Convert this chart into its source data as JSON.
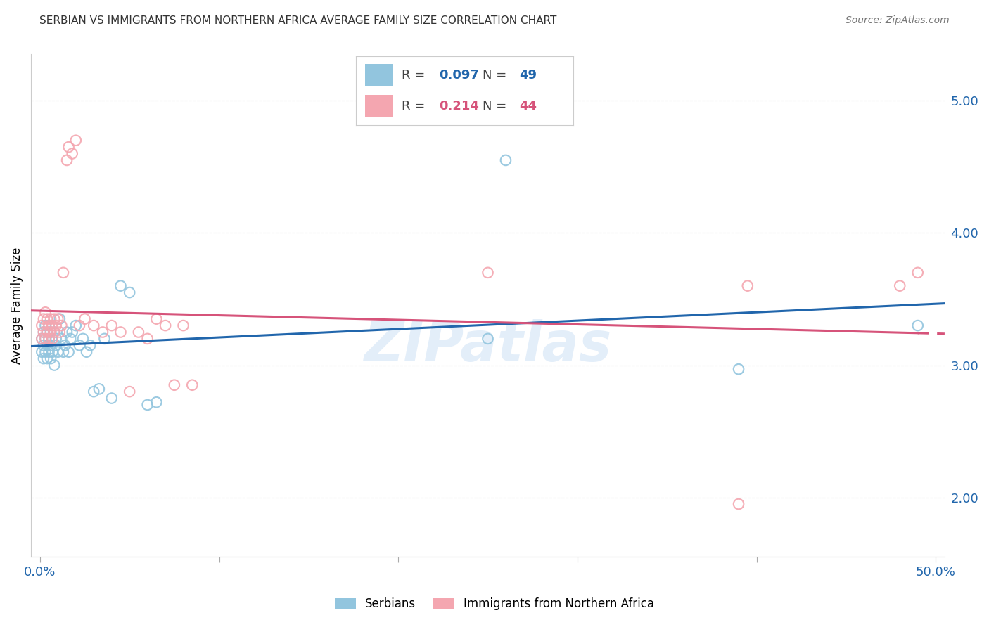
{
  "title": "SERBIAN VS IMMIGRANTS FROM NORTHERN AFRICA AVERAGE FAMILY SIZE CORRELATION CHART",
  "source": "Source: ZipAtlas.com",
  "ylabel": "Average Family Size",
  "ylabel_ticks": [
    2.0,
    3.0,
    4.0,
    5.0
  ],
  "ylim": [
    1.55,
    5.35
  ],
  "xlim": [
    -0.005,
    0.505
  ],
  "x_tick_positions": [
    0.0,
    0.1,
    0.2,
    0.3,
    0.4,
    0.5
  ],
  "x_tick_labels_visible": [
    "0.0%",
    "",
    "",
    "",
    "",
    "50.0%"
  ],
  "legend_blue_R": "0.097",
  "legend_blue_N": "49",
  "legend_pink_R": "0.214",
  "legend_pink_N": "44",
  "blue_color": "#92c5de",
  "pink_color": "#f4a6b0",
  "blue_line_color": "#2166ac",
  "pink_line_color": "#d6537a",
  "watermark": "ZIPatlas",
  "blue_points_x": [
    0.001,
    0.001,
    0.002,
    0.002,
    0.002,
    0.003,
    0.003,
    0.003,
    0.004,
    0.004,
    0.004,
    0.005,
    0.005,
    0.005,
    0.006,
    0.006,
    0.006,
    0.007,
    0.007,
    0.008,
    0.008,
    0.009,
    0.009,
    0.01,
    0.011,
    0.012,
    0.013,
    0.014,
    0.015,
    0.016,
    0.017,
    0.018,
    0.02,
    0.022,
    0.024,
    0.026,
    0.028,
    0.03,
    0.033,
    0.036,
    0.04,
    0.045,
    0.05,
    0.06,
    0.065,
    0.25,
    0.26,
    0.39,
    0.49
  ],
  "blue_points_y": [
    3.2,
    3.1,
    3.25,
    3.15,
    3.05,
    3.3,
    3.2,
    3.1,
    3.25,
    3.15,
    3.05,
    3.3,
    3.2,
    3.1,
    3.25,
    3.15,
    3.05,
    3.2,
    3.1,
    3.25,
    3.0,
    3.2,
    3.15,
    3.1,
    3.35,
    3.2,
    3.1,
    3.15,
    3.25,
    3.1,
    3.2,
    3.25,
    3.3,
    3.15,
    3.2,
    3.1,
    3.15,
    2.8,
    2.82,
    3.2,
    2.75,
    3.6,
    3.55,
    2.7,
    2.72,
    3.2,
    4.55,
    2.97,
    3.3
  ],
  "pink_points_x": [
    0.001,
    0.001,
    0.002,
    0.002,
    0.003,
    0.003,
    0.004,
    0.004,
    0.005,
    0.005,
    0.006,
    0.006,
    0.007,
    0.007,
    0.008,
    0.008,
    0.009,
    0.01,
    0.011,
    0.012,
    0.013,
    0.015,
    0.016,
    0.018,
    0.02,
    0.022,
    0.025,
    0.03,
    0.035,
    0.04,
    0.045,
    0.05,
    0.055,
    0.06,
    0.065,
    0.07,
    0.075,
    0.08,
    0.085,
    0.25,
    0.39,
    0.395,
    0.48,
    0.49
  ],
  "pink_points_y": [
    3.3,
    3.2,
    3.35,
    3.25,
    3.4,
    3.2,
    3.35,
    3.25,
    3.3,
    3.2,
    3.35,
    3.25,
    3.3,
    3.2,
    3.35,
    3.25,
    3.3,
    3.35,
    3.25,
    3.3,
    3.7,
    4.55,
    4.65,
    4.6,
    4.7,
    3.3,
    3.35,
    3.3,
    3.25,
    3.3,
    3.25,
    2.8,
    3.25,
    3.2,
    3.35,
    3.3,
    2.85,
    3.3,
    2.85,
    3.7,
    1.95,
    3.6,
    3.6,
    3.7
  ],
  "background_color": "#ffffff",
  "grid_color": "#d0d0d0"
}
